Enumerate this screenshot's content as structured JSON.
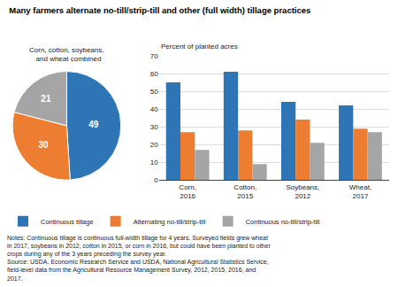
{
  "title": "Many farmers alternate no-till/strip-till and other (full width) tillage practices",
  "notes": "Notes: Continuous tillage is continuous full-width tillage for 4 years. Surveyed fields grew wheat\nin 2017, soybeans in 2012, cotton in 2015, or corn in 2016, but could have been planted to other\ncrops during any of the 3 years preceding the survey year.\nSource: USDA. Economic Research Service and USDA, National Agricultural Statistics Service,\nfield-level data from the Agricultural Resource Management Survey, 2012, 2015, 2016, and\n2017.",
  "chart_data": [
    {
      "type": "pie",
      "title": "Corn, cotton, soybeans,\n  and wheat combined",
      "values": [
        49,
        30,
        21
      ],
      "colors": [
        "#2E75B6",
        "#ED7D31",
        "#A5A5A5"
      ],
      "data_labels": true
    },
    {
      "type": "bar",
      "ylabel": "Percent of planted acres",
      "categories": [
        "Corn,\n2016",
        "Cotton,\n2015",
        "Soybeans,\n2012",
        "Wheat,\n2017"
      ],
      "series": [
        {
          "name": "Continuous tillage",
          "color": "#2E75B6",
          "values": [
            55,
            61,
            44,
            42
          ]
        },
        {
          "name": "Alternating no-till/strip-till",
          "color": "#ED7D31",
          "values": [
            27,
            28,
            34,
            29
          ]
        },
        {
          "name": "Continuous no-till/strip-till",
          "color": "#A5A5A5",
          "values": [
            17,
            9,
            21,
            27
          ]
        }
      ],
      "ylim": [
        0,
        70
      ],
      "yticks": [
        0,
        10,
        20,
        30,
        40,
        50,
        60,
        70
      ],
      "grid": true,
      "legend": "lower left"
    }
  ]
}
